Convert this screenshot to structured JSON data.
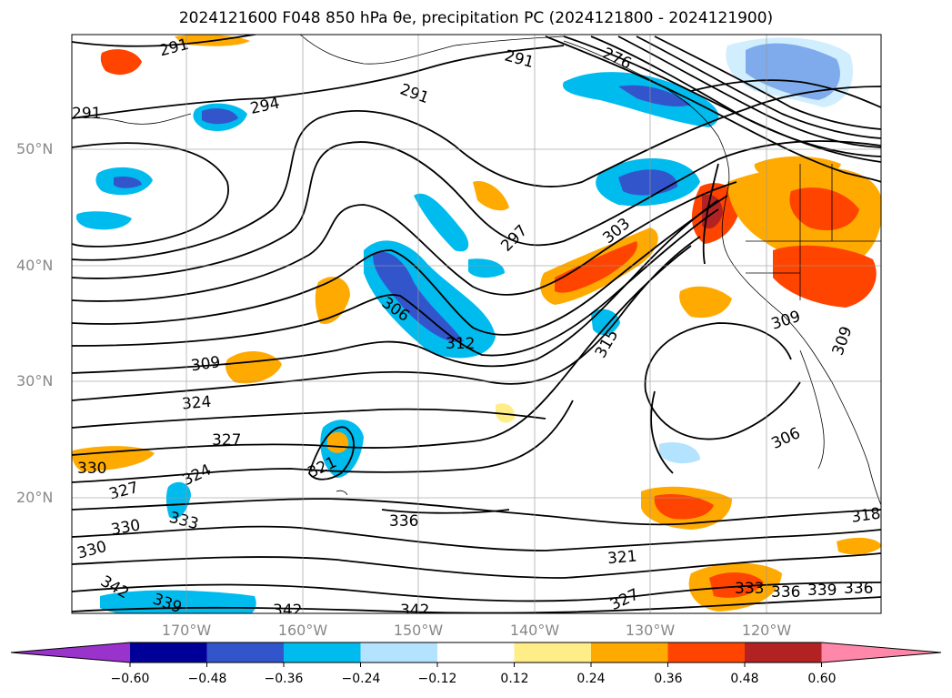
{
  "title": "2024121600 F048 850 hPa θe, precipitation PC (2024121800 - 2024121900)",
  "lat_labels": [
    "50°N",
    "40°N",
    "30°N",
    "20°N"
  ],
  "lon_labels": [
    "170°W",
    "160°W",
    "150°W",
    "140°W",
    "130°W",
    "120°W"
  ],
  "contour_labels": [
    "291",
    "294",
    "291",
    "291",
    "291",
    "297",
    "303",
    "306",
    "312",
    "315",
    "309",
    "309",
    "324",
    "327",
    "321",
    "324",
    "330",
    "327",
    "330",
    "333",
    "336",
    "330",
    "342",
    "339",
    "342",
    "342",
    "327",
    "321",
    "333",
    "336",
    "339",
    "336",
    "318",
    "306",
    "309",
    "276"
  ],
  "colorbar": {
    "ticks": [
      "−0.60",
      "−0.48",
      "−0.36",
      "−0.24",
      "−0.12",
      "0.12",
      "0.24",
      "0.36",
      "0.48",
      "0.60"
    ],
    "colors": [
      "#9933cc",
      "#000099",
      "#3355cc",
      "#00bbee",
      "#b3e3ff",
      "#ffffff",
      "#ffee88",
      "#ffaa00",
      "#ff4400",
      "#b22222",
      "#ff88aa"
    ]
  }
}
